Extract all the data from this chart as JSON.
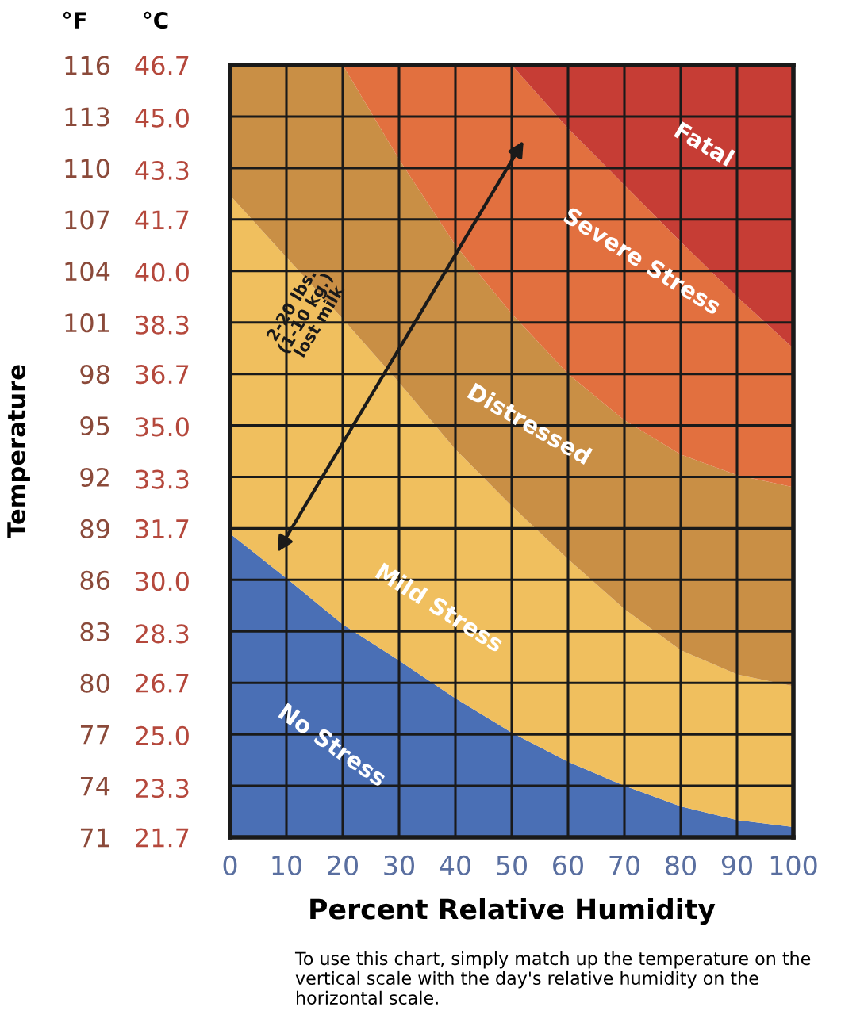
{
  "chart_data": {
    "type": "area",
    "xlabel": "Percent Relative Humidity",
    "ylabel": "Temperature",
    "x": [
      0,
      10,
      20,
      30,
      40,
      50,
      60,
      70,
      80,
      90,
      100
    ],
    "series": [
      {
        "name": "No Stress",
        "color": "#4a6fb5",
        "values": [
          88.7,
          86.1,
          83.4,
          81.3,
          79.1,
          77.1,
          75.4,
          74.0,
          72.8,
          72.0,
          71.6
        ]
      },
      {
        "name": "Mild Stress",
        "color": "#f0bf5e",
        "values": [
          108.4,
          104.8,
          101.2,
          97.5,
          93.6,
          90.3,
          87.2,
          84.3,
          81.9,
          80.5,
          79.8
        ]
      },
      {
        "name": "Distressed",
        "color": "#c98f45",
        "values": [
          116,
          116,
          116,
          110.5,
          105.5,
          101.5,
          98,
          95.3,
          93.3,
          92.1,
          91.4
        ]
      },
      {
        "name": "Severe Stress",
        "color": "#e2703f",
        "values": [
          116,
          116,
          116,
          116,
          116,
          116,
          112.3,
          109,
          105.7,
          102.5,
          99.5
        ]
      },
      {
        "name": "Fatal",
        "color": "#c63d35",
        "values": [
          116,
          116,
          116,
          116,
          116,
          116,
          116,
          116,
          116,
          116,
          116
        ]
      }
    ],
    "xlim": [
      0,
      100
    ],
    "xticks": [
      0,
      10,
      20,
      30,
      40,
      50,
      60,
      70,
      80,
      90,
      100
    ],
    "ylim": [
      71,
      116
    ],
    "yticks": [
      71,
      74,
      77,
      80,
      83,
      86,
      89,
      92,
      95,
      98,
      101,
      104,
      107,
      110,
      113,
      116
    ],
    "y2lim": [
      21.7,
      46.7
    ],
    "y2ticks": [
      21.7,
      23.3,
      {
        "value": 25,
        "label": "25.0"
      },
      26.7,
      28.3,
      {
        "value": 30,
        "label": "30.0"
      },
      31.7,
      33.3,
      {
        "value": 35,
        "label": "35.0"
      },
      36.7,
      38.3,
      {
        "value": 40,
        "label": "40.0"
      },
      41.7,
      43.3,
      {
        "value": 45,
        "label": "45.0"
      },
      46.7
    ],
    "grid": true,
    "legend": false,
    "annotations": [
      "°F",
      "°C",
      "2-20 lbs.\n(1-10 kg.)\nlost milk",
      "To use this chart, simply match up the temperature on the vertical scale with the day's relative humidity on the horizontal scale."
    ]
  }
}
